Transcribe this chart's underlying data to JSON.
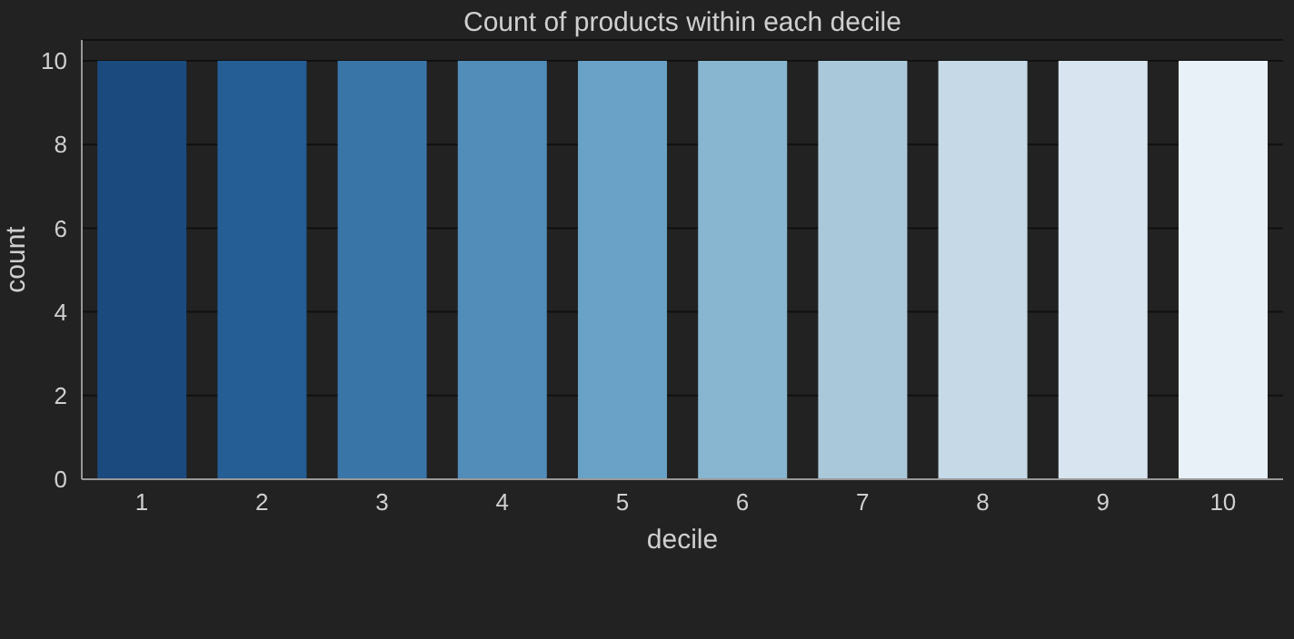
{
  "chart_data": {
    "type": "bar",
    "title": "Count of products within each decile",
    "xlabel": "decile",
    "ylabel": "count",
    "categories": [
      "1",
      "2",
      "3",
      "4",
      "5",
      "6",
      "7",
      "8",
      "9",
      "10"
    ],
    "values": [
      10,
      10,
      10,
      10,
      10,
      10,
      10,
      10,
      10,
      10
    ],
    "colors": [
      "#1b4a7e",
      "#255d95",
      "#3a75a8",
      "#528cb8",
      "#6aa1c6",
      "#88b5cf",
      "#a9c9da",
      "#c5d9e7",
      "#d8e4ef",
      "#e8f0f8"
    ],
    "ylim": [
      0,
      10.5
    ],
    "yticks": [
      0,
      2,
      4,
      6,
      8,
      10
    ],
    "grid": "y"
  }
}
